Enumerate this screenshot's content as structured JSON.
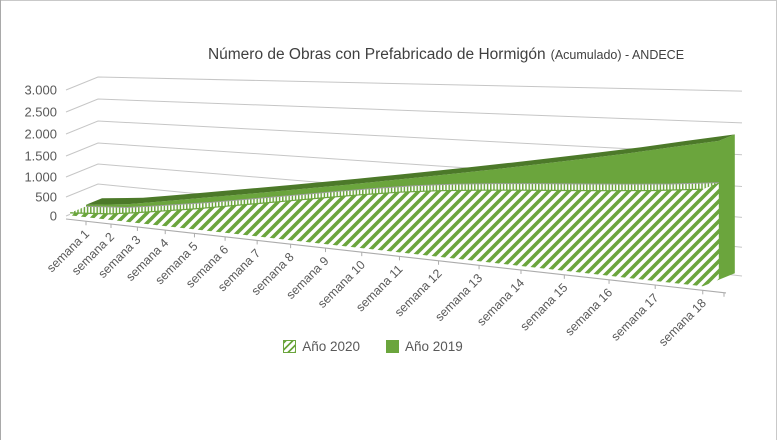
{
  "title": {
    "main": "Número de Obras con Prefabricado de Hormigón",
    "suffix": "(Acumulado) - ANDECE"
  },
  "legend": [
    {
      "label": "Año 2020",
      "style": "hatched"
    },
    {
      "label": "Año 2019",
      "style": "solid"
    }
  ],
  "colors": {
    "green": "#6BA53D",
    "green_dark": "#4C7929",
    "grid": "#C6C6C6",
    "axis": "#ACACAC",
    "tick_text": "#595959",
    "title_text": "#404040",
    "band_line": "#9E9E9E"
  },
  "y_axis": {
    "tick_labels": [
      "0",
      "500",
      "1.000",
      "1.500",
      "2.000",
      "2.500",
      "3.000"
    ],
    "min": 0,
    "max": 3000,
    "step": 500
  },
  "chart_data": {
    "type": "area",
    "projection": "3d-perspective",
    "title": "Número de Obras con Prefabricado de Hormigón (Acumulado) - ANDECE",
    "categories": [
      "semana 1",
      "semana 2",
      "semana 3",
      "semana 4",
      "semana 5",
      "semana 6",
      "semana 7",
      "semana 8",
      "semana 9",
      "semana 10",
      "semana 11",
      "semana 12",
      "semana 13",
      "semana 14",
      "semana 15",
      "semana 16",
      "semana 17",
      "semana 18"
    ],
    "series": [
      {
        "name": "Año 2020",
        "pattern": "hatched",
        "values": [
          60,
          140,
          230,
          330,
          430,
          540,
          650,
          760,
          870,
          970,
          1060,
          1130,
          1180,
          1220,
          1255,
          1290,
          1330,
          1385
        ]
      },
      {
        "name": "Año 2019",
        "pattern": "solid",
        "values": [
          100,
          210,
          320,
          430,
          540,
          650,
          760,
          870,
          980,
          1090,
          1200,
          1310,
          1420,
          1530,
          1640,
          1750,
          1870,
          1980
        ]
      }
    ],
    "ylim": [
      0,
      3000
    ],
    "grid": true,
    "legend_position": "bottom"
  }
}
